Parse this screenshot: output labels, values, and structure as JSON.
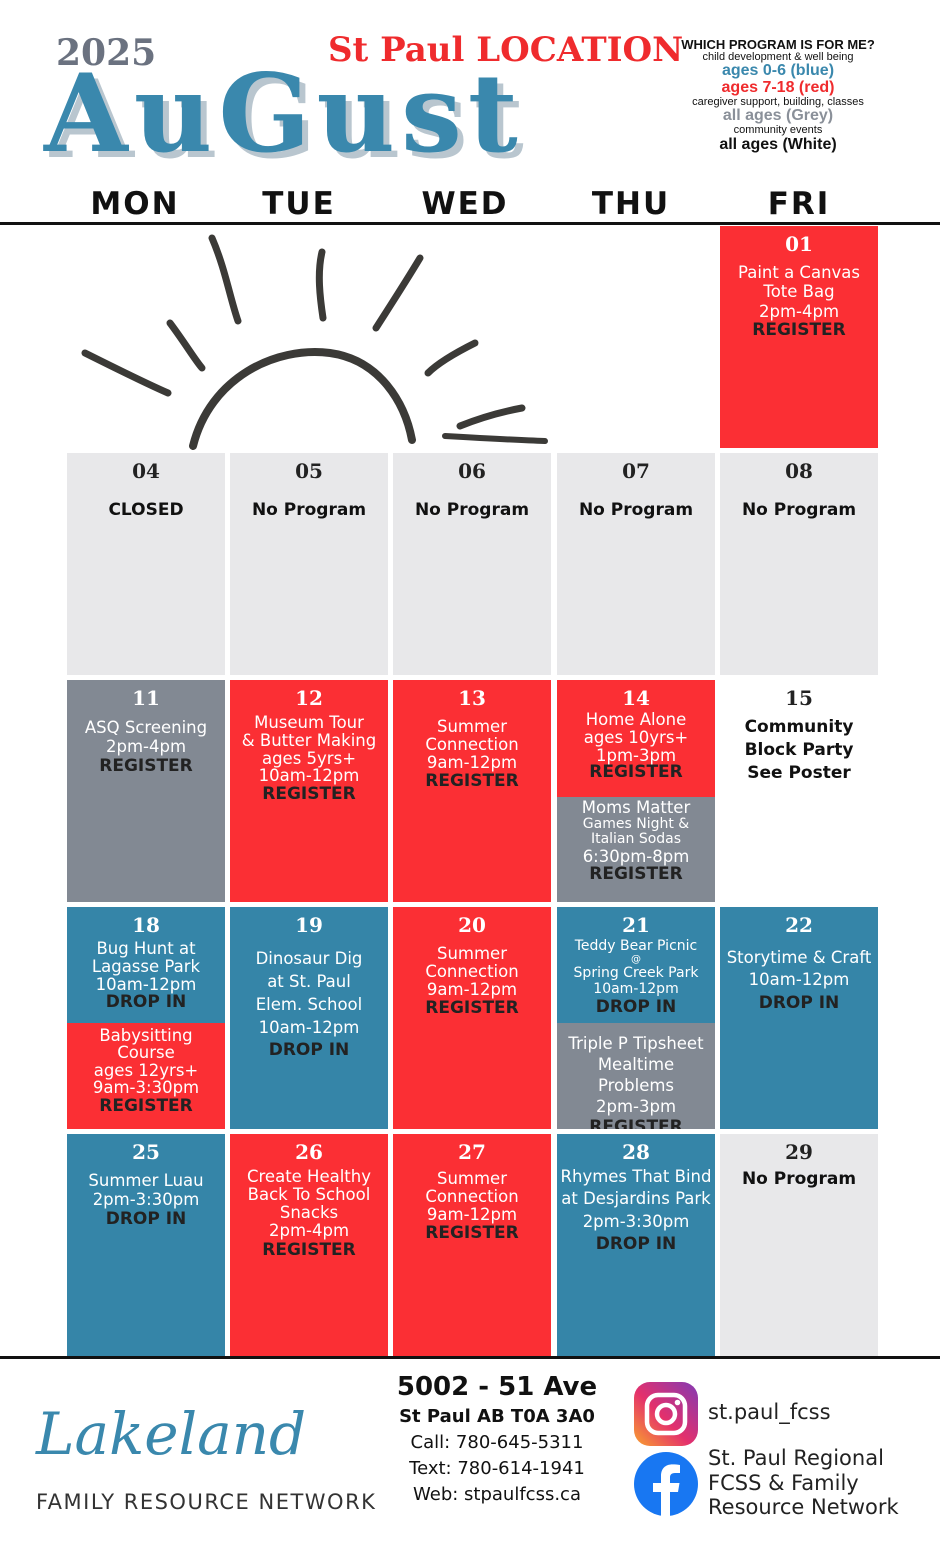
{
  "header": {
    "year": "2025",
    "location": "St Paul LOCATION",
    "month": "AuGust"
  },
  "legend": {
    "title": "WHICH PROGRAM IS FOR ME?",
    "blue_desc": "child development & well being",
    "blue_label": "ages 0-6 (blue)",
    "red_label": "ages 7-18 (red)",
    "red_desc": "caregiver support, building, classes",
    "grey_label": "all ages (Grey)",
    "grey_desc": "community events",
    "white_label": "all ages (White)",
    "colors": {
      "blue": "#3a88ad",
      "red": "#ef2b2d",
      "grey": "#8a9099",
      "white": "#111111"
    }
  },
  "weekdays": [
    "MON",
    "TUE",
    "WED",
    "THU",
    "FRI"
  ],
  "decoration": "sun-illustration",
  "days": {
    "d01": {
      "date": "01",
      "lines": [
        "Paint a Canvas",
        "Tote Bag",
        "2pm-4pm"
      ],
      "action": "REGISTER"
    },
    "d04": {
      "date": "04",
      "note": "CLOSED"
    },
    "d05": {
      "date": "05",
      "note": "No Program"
    },
    "d06": {
      "date": "06",
      "note": "No Program"
    },
    "d07": {
      "date": "07",
      "note": "No Program"
    },
    "d08": {
      "date": "08",
      "note": "No Program"
    },
    "d11": {
      "date": "11",
      "lines": [
        "ASQ Screening",
        "2pm-4pm"
      ],
      "action": "REGISTER"
    },
    "d12": {
      "date": "12",
      "lines": [
        "Museum Tour",
        "& Butter Making",
        "ages 5yrs+",
        "10am-12pm"
      ],
      "action": "REGISTER"
    },
    "d13": {
      "date": "13",
      "lines": [
        "Summer",
        "Connection",
        "9am-12pm"
      ],
      "action": "REGISTER"
    },
    "d14a": {
      "date": "14",
      "lines": [
        "Home Alone",
        "ages 10yrs+",
        "1pm-3pm"
      ],
      "action": "REGISTER"
    },
    "d14b": {
      "lines": [
        "Moms Matter",
        "Games Night &",
        "Italian Sodas",
        "6:30pm-8pm"
      ],
      "action": "REGISTER"
    },
    "d15": {
      "date": "15",
      "lines": [
        "Community",
        "Block Party",
        "See Poster"
      ]
    },
    "d18a": {
      "date": "18",
      "lines": [
        "Bug Hunt at",
        "Lagasse Park",
        "10am-12pm"
      ],
      "action": "DROP IN"
    },
    "d18b": {
      "lines": [
        "Babysitting",
        "Course",
        "ages 12yrs+",
        "9am-3:30pm"
      ],
      "action": "REGISTER"
    },
    "d19": {
      "date": "19",
      "lines": [
        "Dinosaur Dig",
        "at St. Paul",
        "Elem. School",
        "10am-12pm"
      ],
      "action": "DROP IN"
    },
    "d20": {
      "date": "20",
      "lines": [
        "Summer",
        "Connection",
        "9am-12pm"
      ],
      "action": "REGISTER"
    },
    "d21a": {
      "date": "21",
      "lines": [
        "Teddy Bear Picnic",
        "@",
        "Spring Creek Park",
        "10am-12pm"
      ],
      "action": "DROP IN"
    },
    "d21b": {
      "lines": [
        "Triple P Tipsheet",
        "Mealtime Problems",
        "2pm-3pm"
      ],
      "action": "REGISTER"
    },
    "d22": {
      "date": "22",
      "lines": [
        "Storytime & Craft",
        "10am-12pm"
      ],
      "action": "DROP IN"
    },
    "d25": {
      "date": "25",
      "lines": [
        "Summer Luau",
        "2pm-3:30pm"
      ],
      "action": "DROP IN"
    },
    "d26": {
      "date": "26",
      "lines": [
        "Create Healthy",
        "Back To School",
        "Snacks",
        "2pm-4pm"
      ],
      "action": "REGISTER"
    },
    "d27": {
      "date": "27",
      "lines": [
        "Summer",
        "Connection",
        "9am-12pm"
      ],
      "action": "REGISTER"
    },
    "d28": {
      "date": "28",
      "lines": [
        "Rhymes That Bind",
        "at Desjardins Park",
        "2pm-3:30pm"
      ],
      "action": "DROP IN"
    },
    "d29": {
      "date": "29",
      "note": "No Program"
    }
  },
  "footer": {
    "logo_script": "Lakeland",
    "logo_sub": "FAMILY RESOURCE NETWORK",
    "address": "5002 - 51 Ave",
    "city": "St Paul AB T0A 3A0",
    "call": "Call: 780-645-5311",
    "text": "Text: 780-614-1941",
    "web": "Web: stpaulfcss.ca",
    "instagram_handle": "st.paul_fcss",
    "facebook_lines": [
      "St. Paul Regional",
      "FCSS & Family",
      "Resource Network"
    ],
    "instagram_icon": "instagram-icon",
    "facebook_icon": "facebook-icon"
  }
}
